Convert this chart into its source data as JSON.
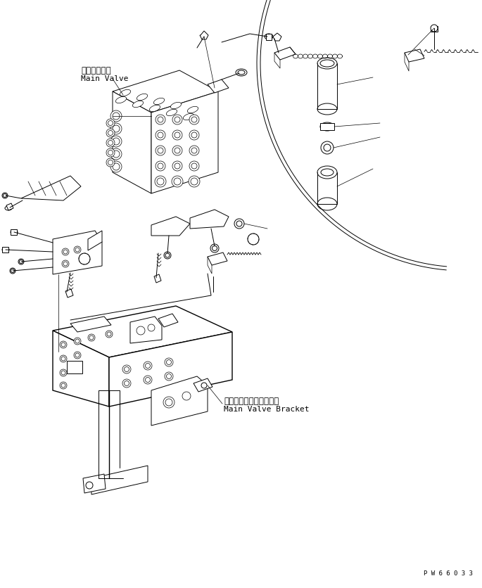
{
  "bg_color": "#ffffff",
  "line_color": "#000000",
  "lw": 0.7,
  "lw2": 1.0,
  "fig_width": 6.85,
  "fig_height": 8.36,
  "dpi": 100,
  "watermark": "P W 6 6 0 3 3",
  "label_main_valve_jp": "メインバルブ",
  "label_main_valve_en": "Main Valve",
  "label_bracket_jp": "メインバルブブラケット",
  "label_bracket_en": "Main Valve Bracket",
  "fs": 7.0,
  "fs_wm": 6.5
}
